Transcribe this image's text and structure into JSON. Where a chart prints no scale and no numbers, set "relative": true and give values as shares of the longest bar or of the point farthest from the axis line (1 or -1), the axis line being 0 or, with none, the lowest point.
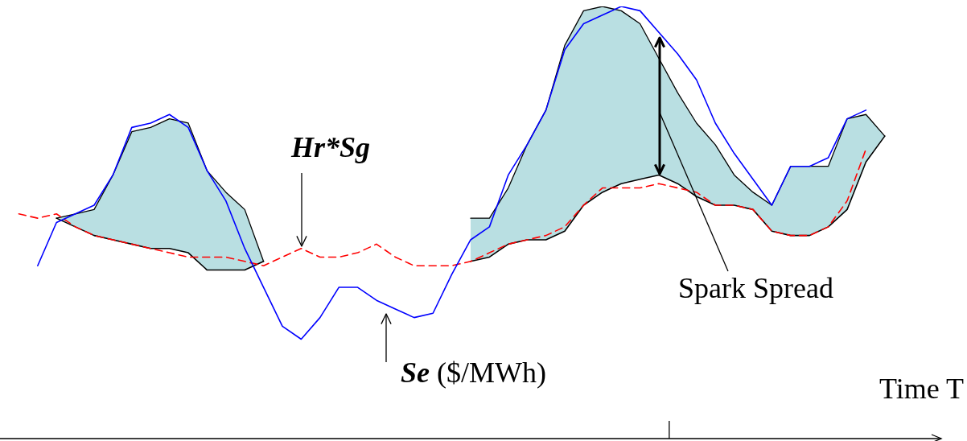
{
  "chart_data": {
    "type": "line",
    "relative": true,
    "xlabel": "Time T",
    "legend": false,
    "marker": "none",
    "categories": [
      null,
      null,
      null,
      null,
      null,
      null,
      null,
      null,
      null,
      null,
      null,
      null,
      null,
      null,
      null,
      null,
      null,
      null,
      null,
      null,
      null,
      null,
      null,
      null,
      null,
      null,
      null,
      null,
      null,
      null,
      null,
      null,
      null,
      null,
      null,
      null,
      null,
      null,
      null,
      null,
      null,
      null,
      null,
      null,
      null,
      null,
      null,
      null,
      null,
      null,
      null
    ],
    "series": [
      {
        "type": "area",
        "color": "#b9dfe2",
        "values": [
          null,
          null,
          null,
          0.51,
          0.52,
          0.53,
          0.61,
          0.71,
          0.72,
          0.74,
          0.73,
          0.62,
          0.57,
          0.53,
          0.41,
          null,
          null,
          null,
          null,
          null,
          null,
          null,
          null,
          null,
          null,
          0.51,
          0.51,
          0.58,
          0.68,
          0.76,
          0.91,
          0.99,
          1.0,
          0.99,
          0.96,
          0.88,
          0.8,
          0.73,
          0.68,
          0.61,
          0.57,
          0.54,
          0.63,
          0.63,
          0.63,
          0.74,
          0.75,
          0.7,
          null,
          null,
          null
        ]
      },
      {
        "type": "line",
        "color": "#000000",
        "values": [
          null,
          null,
          null,
          0.51,
          0.49,
          0.47,
          0.46,
          0.45,
          0.44,
          0.44,
          0.43,
          0.39,
          0.39,
          0.39,
          0.41,
          null,
          null,
          null,
          null,
          null,
          null,
          null,
          null,
          null,
          null,
          0.41,
          0.42,
          0.45,
          0.46,
          0.46,
          0.48,
          0.54,
          0.57,
          0.59,
          0.6,
          0.61,
          0.59,
          0.56,
          0.54,
          0.54,
          0.53,
          0.48,
          0.47,
          0.47,
          0.49,
          0.53,
          0.64,
          0.7,
          null,
          null,
          null
        ]
      },
      {
        "color": "#ff0000",
        "line_style": "dashed",
        "values": [
          null,
          0.52,
          0.51,
          0.52,
          0.49,
          0.47,
          0.46,
          0.45,
          0.44,
          0.43,
          0.42,
          0.42,
          0.42,
          0.41,
          0.4,
          0.42,
          0.44,
          0.42,
          0.42,
          0.43,
          0.45,
          0.42,
          0.4,
          0.4,
          0.4,
          0.41,
          0.43,
          0.45,
          0.46,
          0.47,
          0.49,
          0.54,
          0.58,
          0.58,
          0.58,
          0.59,
          0.58,
          0.57,
          0.54,
          0.54,
          0.53,
          0.48,
          0.47,
          0.47,
          0.49,
          0.55,
          0.67,
          null,
          null,
          null,
          null
        ]
      },
      {
        "color": "#0000ff",
        "values": [
          null,
          null,
          0.4,
          0.5,
          0.52,
          0.54,
          0.61,
          0.72,
          0.73,
          0.75,
          0.72,
          0.62,
          0.55,
          0.44,
          0.35,
          0.26,
          0.23,
          0.28,
          0.35,
          0.35,
          0.32,
          0.3,
          0.28,
          0.29,
          0.38,
          0.46,
          0.49,
          0.61,
          0.68,
          0.76,
          0.9,
          0.96,
          0.98,
          1.0,
          0.99,
          0.94,
          0.89,
          0.83,
          0.73,
          0.66,
          0.6,
          0.54,
          0.63,
          0.63,
          0.65,
          0.74,
          0.76,
          null,
          null,
          null,
          null
        ]
      }
    ],
    "annotations": [
      "Hr*Sg",
      "Se ($/MWh)",
      "Spark Spread"
    ]
  }
}
